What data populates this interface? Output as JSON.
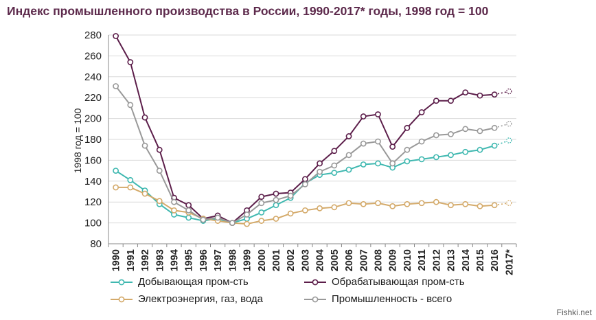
{
  "title": "Индекс промышленного производства в России, 1990-2017* годы, 1998 год = 100",
  "watermark": "Fishki.net",
  "chart_data": {
    "type": "line",
    "title": "Индекс промышленного производства в России, 1990-2017* годы, 1998 год = 100",
    "xlabel": "",
    "ylabel": "1998 год = 100",
    "ylim": [
      80,
      280
    ],
    "yticks": [
      "80",
      "100",
      "120",
      "140",
      "160",
      "180",
      "200",
      "220",
      "240",
      "260",
      "280"
    ],
    "x": [
      "1990",
      "1991",
      "1992",
      "1993",
      "1994",
      "1995",
      "1996",
      "1997",
      "1998",
      "1999",
      "2000",
      "2001",
      "2002",
      "2003",
      "2004",
      "2005",
      "2006",
      "2007",
      "2008",
      "2009",
      "2010",
      "2011",
      "2012",
      "2013",
      "2014",
      "2015",
      "2016",
      "2017*"
    ],
    "grid": "horizontal",
    "legend_position": "bottom",
    "series": [
      {
        "name": "Добывающая пром-сть",
        "color": "#3fb8b0",
        "values": [
          150,
          141,
          131,
          118,
          108,
          105,
          102,
          104,
          100,
          104,
          110,
          117,
          124,
          138,
          146,
          148,
          151,
          156,
          157,
          153,
          159,
          161,
          163,
          165,
          168,
          170,
          174,
          179
        ],
        "last_dotted": true
      },
      {
        "name": "Обрабатывающая пром-сть",
        "color": "#5c1e4a",
        "values": [
          279,
          254,
          201,
          170,
          124,
          117,
          104,
          107,
          100,
          112,
          125,
          128,
          129,
          142,
          157,
          169,
          183,
          202,
          204,
          173,
          191,
          206,
          217,
          217,
          225,
          222,
          223,
          226
        ],
        "last_dotted": true
      },
      {
        "name": "Электроэнергия, газ, вода",
        "color": "#d4aa6a",
        "values": [
          134,
          134,
          128,
          121,
          112,
          110,
          104,
          102,
          100,
          99,
          102,
          104,
          109,
          112,
          114,
          115,
          119,
          118,
          119,
          116,
          118,
          119,
          120,
          117,
          118,
          116,
          117,
          119
        ],
        "last_dotted": true
      },
      {
        "name": "Промышленность - всего",
        "color": "#999999",
        "values": [
          231,
          213,
          174,
          150,
          120,
          112,
          103,
          105,
          100,
          108,
          119,
          122,
          126,
          137,
          149,
          155,
          165,
          176,
          178,
          157,
          170,
          178,
          184,
          185,
          190,
          188,
          191,
          195
        ],
        "last_dotted": true
      }
    ]
  }
}
